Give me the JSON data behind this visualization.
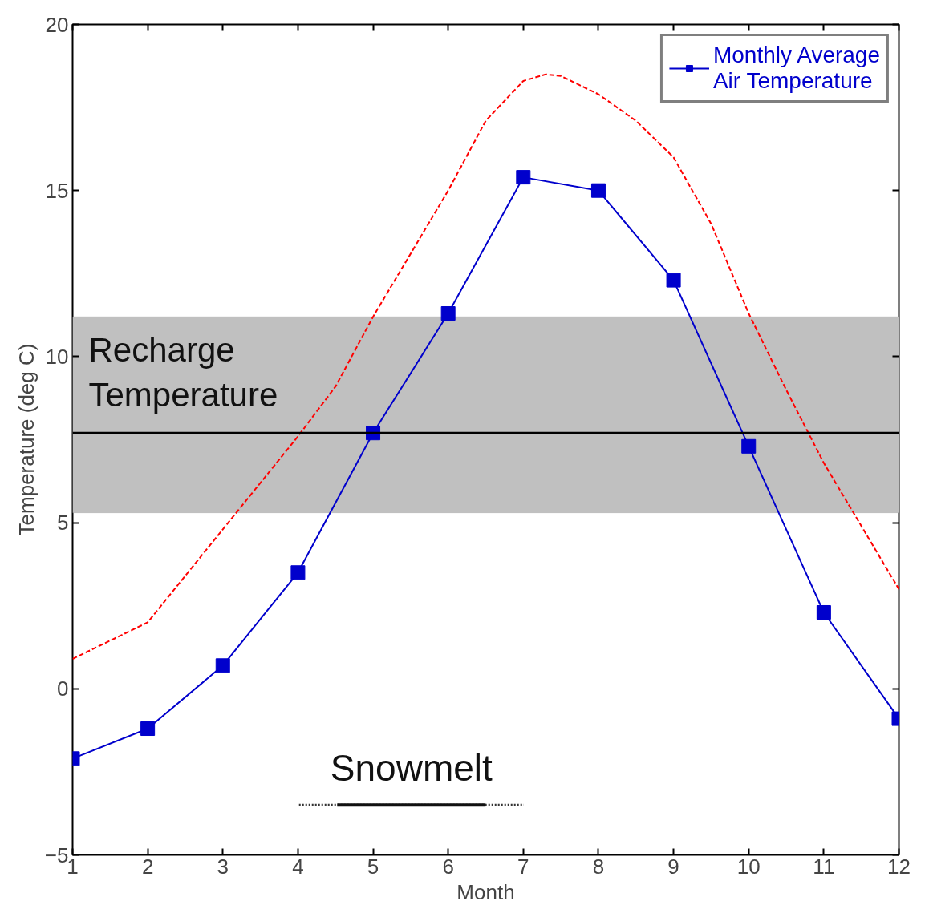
{
  "chart_data": {
    "type": "line",
    "xlabel": "Month",
    "ylabel": "Temperature (deg C)",
    "x": [
      1,
      2,
      3,
      4,
      5,
      6,
      7,
      8,
      9,
      10,
      11,
      12
    ],
    "xlim": [
      1,
      12
    ],
    "ylim": [
      -5,
      20
    ],
    "xticks": [
      1,
      2,
      3,
      4,
      5,
      6,
      7,
      8,
      9,
      10,
      11,
      12
    ],
    "yticks": [
      -5,
      0,
      5,
      10,
      15,
      20
    ],
    "grid": false,
    "legend": "top right",
    "series": [
      {
        "name": "Monthly Average Air Temperature",
        "color": "#0000cc",
        "marker": "square",
        "line_style": "solid",
        "values": [
          -2.1,
          -1.2,
          0.7,
          3.5,
          7.7,
          11.3,
          15.4,
          15.0,
          12.3,
          7.3,
          2.3,
          -0.9
        ]
      },
      {
        "color": "#ff0000",
        "marker": "none",
        "line_style": "dashed",
        "x": [
          1,
          2,
          3,
          4,
          4.5,
          5,
          5.5,
          6,
          6.5,
          7,
          7.3,
          7.5,
          8,
          8.5,
          9,
          9.5,
          10,
          10.5,
          11,
          11.5,
          12
        ],
        "values": [
          0.9,
          2.0,
          4.8,
          7.6,
          9.1,
          11.2,
          13.1,
          15.0,
          17.1,
          18.3,
          18.5,
          18.45,
          17.9,
          17.1,
          16.0,
          14.0,
          11.3,
          9.0,
          6.8,
          4.9,
          3.0
        ]
      }
    ],
    "bands": [
      {
        "axis": "y",
        "from": 5.3,
        "to": 11.2,
        "label": "Recharge Temperature",
        "color": "#c0c0c0"
      }
    ],
    "ref_lines": [
      {
        "axis": "y",
        "value": 7.7,
        "color": "#000000"
      }
    ],
    "annotations": [
      "Snowmelt"
    ]
  }
}
